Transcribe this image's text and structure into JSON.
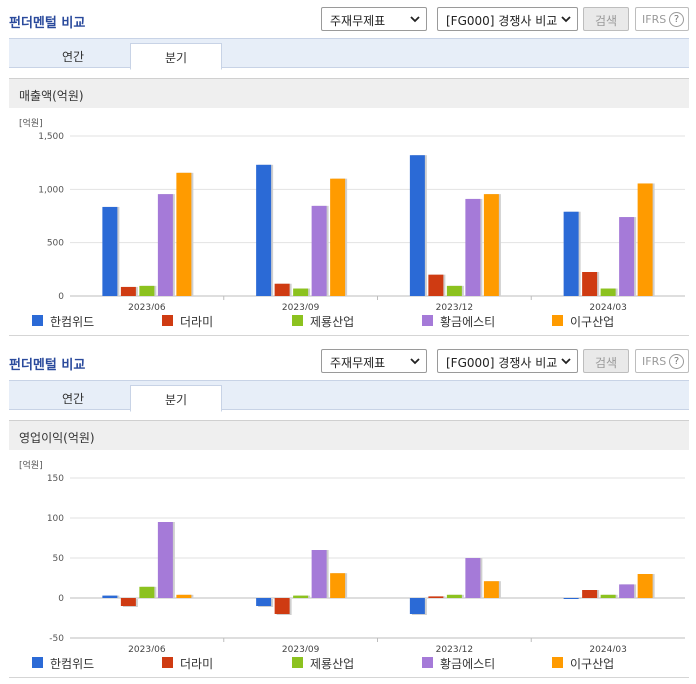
{
  "panels": [
    {
      "title": "펀더멘털 비교",
      "select1": "주재무제표",
      "select2": "[FG000] 경쟁사 비교",
      "search_label": "검색",
      "ifrs_label": "IFRS",
      "ifrs_help": "?",
      "tabs": [
        {
          "label": "연간"
        },
        {
          "label": "분기"
        }
      ],
      "active_tab": 1,
      "section_title": "매출액(억원)"
    },
    {
      "title": "펀더멘털 비교",
      "select1": "주재무제표",
      "select2": "[FG000] 경쟁사 비교",
      "search_label": "검색",
      "ifrs_label": "IFRS",
      "ifrs_help": "?",
      "tabs": [
        {
          "label": "연간"
        },
        {
          "label": "분기"
        }
      ],
      "active_tab": 1,
      "section_title": "영업이익(억원)"
    }
  ],
  "colors": {
    "series": [
      "#2b6ad6",
      "#cf3b12",
      "#8cc21f",
      "#a57ad8",
      "#ff9b00"
    ],
    "grid": "#e2e2e2",
    "axis": "#bdbdbd"
  },
  "chart_data": [
    {
      "type": "bar",
      "unit_label": "[억원]",
      "categories": [
        "2023/06",
        "2023/09",
        "2023/12",
        "2024/03"
      ],
      "yticks": [
        0,
        500,
        1000,
        1500
      ],
      "ylim": [
        0,
        1500
      ],
      "series": [
        {
          "name": "한컴위드",
          "values": [
            835,
            1230,
            1320,
            790
          ]
        },
        {
          "name": "더라미",
          "values": [
            85,
            115,
            200,
            225
          ]
        },
        {
          "name": "제룡산업",
          "values": [
            95,
            70,
            95,
            70
          ]
        },
        {
          "name": "황금에스티",
          "values": [
            955,
            845,
            910,
            740
          ]
        },
        {
          "name": "이구산업",
          "values": [
            1155,
            1100,
            955,
            1055
          ]
        }
      ]
    },
    {
      "type": "bar",
      "unit_label": "[억원]",
      "categories": [
        "2023/06",
        "2023/09",
        "2023/12",
        "2024/03"
      ],
      "yticks": [
        -50,
        0,
        50,
        100,
        150
      ],
      "ylim": [
        -50,
        150
      ],
      "series": [
        {
          "name": "한컴위드",
          "values": [
            3,
            -10,
            -20,
            0
          ]
        },
        {
          "name": "더라미",
          "values": [
            -10,
            -20,
            2,
            10
          ]
        },
        {
          "name": "제룡산업",
          "values": [
            14,
            3,
            4,
            4
          ]
        },
        {
          "name": "황금에스티",
          "values": [
            95,
            60,
            50,
            17
          ]
        },
        {
          "name": "이구산업",
          "values": [
            4,
            31,
            21,
            30
          ]
        }
      ]
    }
  ]
}
